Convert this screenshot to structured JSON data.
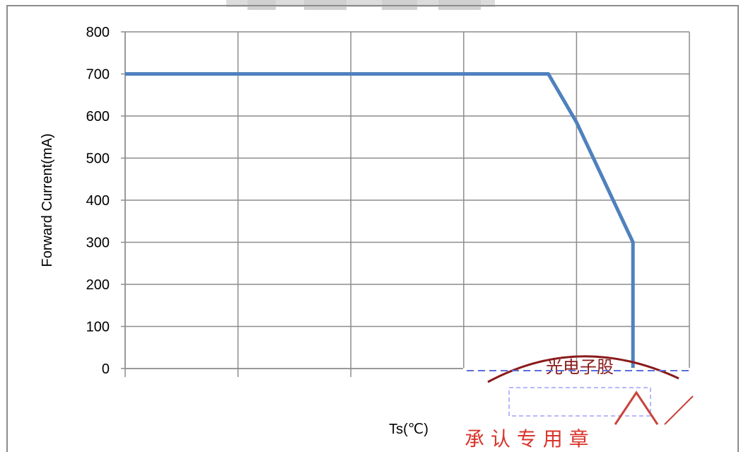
{
  "chart_data": {
    "type": "line",
    "title": "",
    "xlabel": "Ts(℃)",
    "ylabel": "Forward Current(mA)",
    "ylim": [
      0,
      800
    ],
    "yticks": [
      0,
      100,
      200,
      300,
      400,
      500,
      600,
      700,
      800
    ],
    "xlim": [
      0,
      100
    ],
    "x_tick_labels": [],
    "grid": true,
    "legend": "none",
    "series": [
      {
        "x": [
          0,
          75,
          80,
          90,
          90
        ],
        "y": [
          700,
          700,
          585,
          300,
          0
        ]
      }
    ]
  },
  "stamp": {
    "top_text": "光电子股",
    "bottom_text": "承 认 专 用 章"
  },
  "colors": {
    "series": "#4f81bd",
    "grid": "#8c8c8c",
    "frame": "#8c8c8c",
    "stamp": "#d9342b",
    "watermark": "#d8d8d8"
  }
}
